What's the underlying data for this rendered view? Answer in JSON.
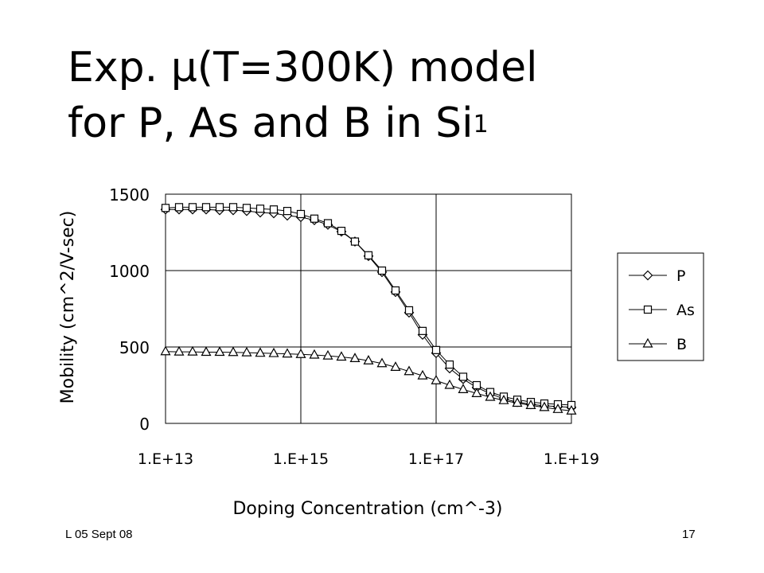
{
  "slide": {
    "title_line1_prefix": "Exp. ",
    "title_mu": "μ",
    "title_line1_suffix": "(T=300K) model",
    "title_line2": "for P, As and B in Si",
    "title_superscript": "1",
    "footer_left": "L 05 Sept 08",
    "page_number": "17"
  },
  "chart_data": {
    "type": "line",
    "xlabel": "Doping Concentration (cm^-3)",
    "ylabel": "Mobility (cm^2/V-sec)",
    "x_scale": "log",
    "xlim": [
      10000000000000.0,
      1e+19
    ],
    "ylim": [
      0,
      1500
    ],
    "x_ticks": [
      "1.E+13",
      "1.E+15",
      "1.E+17",
      "1.E+19"
    ],
    "x_tick_values": [
      10000000000000.0,
      1000000000000000.0,
      1e+17,
      1e+19
    ],
    "y_ticks": [
      "0",
      "500",
      "1000",
      "1500"
    ],
    "y_tick_values": [
      0,
      500,
      1000,
      1500
    ],
    "grid": true,
    "legend_position": "right",
    "x": [
      10000000000000.0,
      15850000000000.0,
      25120000000000.0,
      39810000000000.0,
      63100000000000.0,
      100000000000000.0,
      158500000000000.0,
      251200000000000.0,
      398100000000000.0,
      631000000000000.0,
      1000000000000000.0,
      1585000000000000.0,
      2512000000000000.0,
      3981000000000000.0,
      6310000000000000.0,
      1e+16,
      1.585e+16,
      2.512e+16,
      3.981e+16,
      6.31e+16,
      1e+17,
      1.585e+17,
      2.512e+17,
      3.981e+17,
      6.31e+17,
      1e+18,
      1.585e+18,
      2.512e+18,
      3.981e+18,
      6.31e+18,
      1e+19
    ],
    "series": [
      {
        "name": "P",
        "marker": "diamond",
        "values": [
          1400,
          1400,
          1400,
          1400,
          1395,
          1395,
          1390,
          1380,
          1375,
          1360,
          1350,
          1330,
          1300,
          1255,
          1190,
          1095,
          990,
          860,
          725,
          580,
          460,
          360,
          290,
          235,
          195,
          160,
          140,
          125,
          115,
          110,
          105
        ]
      },
      {
        "name": "As",
        "marker": "square",
        "values": [
          1410,
          1415,
          1415,
          1415,
          1415,
          1415,
          1410,
          1405,
          1400,
          1390,
          1370,
          1340,
          1310,
          1260,
          1190,
          1100,
          1000,
          870,
          740,
          605,
          480,
          385,
          305,
          250,
          205,
          175,
          155,
          140,
          130,
          125,
          120
        ]
      },
      {
        "name": "B",
        "marker": "triangle",
        "values": [
          470,
          468,
          468,
          466,
          466,
          465,
          463,
          460,
          458,
          455,
          452,
          448,
          442,
          435,
          425,
          410,
          392,
          368,
          340,
          312,
          280,
          250,
          222,
          196,
          172,
          150,
          133,
          118,
          105,
          92,
          82
        ]
      }
    ]
  }
}
